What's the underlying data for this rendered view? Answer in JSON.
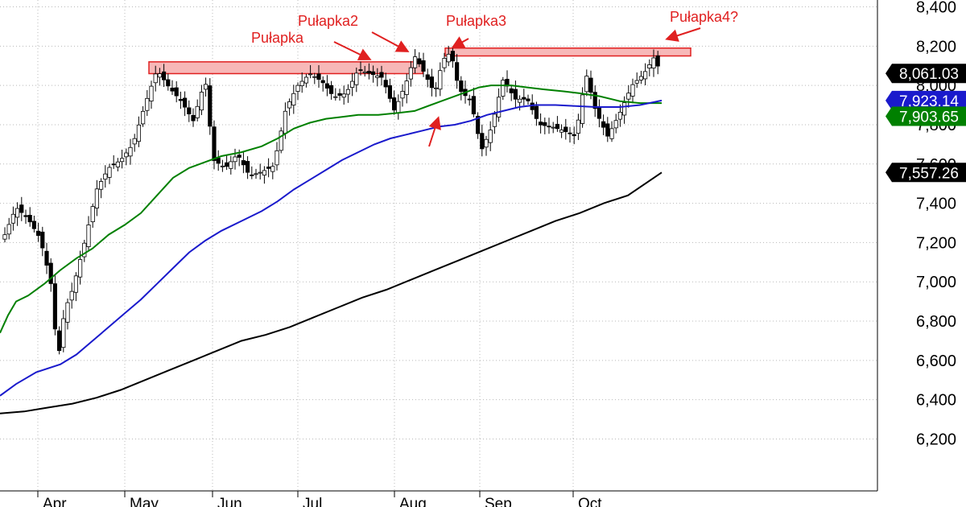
{
  "chart_data": {
    "type": "candlestick",
    "x_months": [
      "Apr",
      "May",
      "Jun",
      "Jul",
      "Aug",
      "Sep",
      "Oct"
    ],
    "y_ticks": [
      "6,200",
      "6,400",
      "6,600",
      "6,800",
      "7,000",
      "7,200",
      "7,400",
      "7,600",
      "7,800",
      "8,000",
      "8,200",
      "8,400"
    ],
    "y_tick_values": [
      6200,
      6400,
      6600,
      6800,
      7000,
      7200,
      7400,
      7600,
      7800,
      8000,
      8200,
      8400
    ],
    "ylim": [
      6160,
      8420
    ],
    "grid": true,
    "series": [
      {
        "key": "ma_short",
        "color": "#008000",
        "last_label": "7,903.65",
        "points": [
          [
            0,
            6740
          ],
          [
            10,
            6830
          ],
          [
            20,
            6900
          ],
          [
            35,
            6930
          ],
          [
            55,
            6990
          ],
          [
            75,
            7060
          ],
          [
            95,
            7120
          ],
          [
            115,
            7170
          ],
          [
            135,
            7240
          ],
          [
            155,
            7290
          ],
          [
            175,
            7350
          ],
          [
            195,
            7440
          ],
          [
            215,
            7530
          ],
          [
            235,
            7580
          ],
          [
            255,
            7610
          ],
          [
            275,
            7640
          ],
          [
            300,
            7660
          ],
          [
            325,
            7690
          ],
          [
            345,
            7730
          ],
          [
            365,
            7780
          ],
          [
            385,
            7810
          ],
          [
            405,
            7830
          ],
          [
            425,
            7840
          ],
          [
            445,
            7850
          ],
          [
            470,
            7850
          ],
          [
            495,
            7860
          ],
          [
            515,
            7870
          ],
          [
            535,
            7900
          ],
          [
            555,
            7930
          ],
          [
            575,
            7960
          ],
          [
            595,
            7990
          ],
          [
            610,
            8000
          ],
          [
            635,
            8000
          ],
          [
            655,
            7990
          ],
          [
            675,
            7980
          ],
          [
            700,
            7970
          ],
          [
            720,
            7960
          ],
          [
            745,
            7945
          ],
          [
            770,
            7920
          ],
          [
            795,
            7910
          ],
          [
            822,
            7910
          ]
        ]
      },
      {
        "key": "ma_mid",
        "color": "#1a1acc",
        "last_label": "7,923.14",
        "points": [
          [
            0,
            6420
          ],
          [
            20,
            6480
          ],
          [
            45,
            6540
          ],
          [
            75,
            6580
          ],
          [
            95,
            6630
          ],
          [
            115,
            6700
          ],
          [
            135,
            6770
          ],
          [
            155,
            6840
          ],
          [
            175,
            6910
          ],
          [
            195,
            6990
          ],
          [
            215,
            7070
          ],
          [
            235,
            7150
          ],
          [
            255,
            7210
          ],
          [
            275,
            7260
          ],
          [
            300,
            7310
          ],
          [
            325,
            7360
          ],
          [
            345,
            7410
          ],
          [
            365,
            7470
          ],
          [
            385,
            7520
          ],
          [
            405,
            7570
          ],
          [
            425,
            7620
          ],
          [
            445,
            7660
          ],
          [
            465,
            7700
          ],
          [
            485,
            7730
          ],
          [
            505,
            7750
          ],
          [
            525,
            7770
          ],
          [
            545,
            7790
          ],
          [
            565,
            7800
          ],
          [
            585,
            7820
          ],
          [
            605,
            7850
          ],
          [
            625,
            7870
          ],
          [
            645,
            7890
          ],
          [
            665,
            7900
          ],
          [
            690,
            7900
          ],
          [
            715,
            7895
          ],
          [
            740,
            7890
          ],
          [
            770,
            7890
          ],
          [
            795,
            7900
          ],
          [
            822,
            7923
          ]
        ]
      },
      {
        "key": "ma_long",
        "color": "#000000",
        "last_label": "7,557.26",
        "points": [
          [
            0,
            6330
          ],
          [
            30,
            6340
          ],
          [
            60,
            6360
          ],
          [
            90,
            6380
          ],
          [
            120,
            6410
          ],
          [
            150,
            6450
          ],
          [
            180,
            6500
          ],
          [
            210,
            6550
          ],
          [
            240,
            6600
          ],
          [
            270,
            6650
          ],
          [
            300,
            6700
          ],
          [
            330,
            6730
          ],
          [
            360,
            6770
          ],
          [
            390,
            6820
          ],
          [
            420,
            6870
          ],
          [
            450,
            6920
          ],
          [
            480,
            6960
          ],
          [
            510,
            7010
          ],
          [
            540,
            7060
          ],
          [
            570,
            7110
          ],
          [
            600,
            7160
          ],
          [
            630,
            7210
          ],
          [
            660,
            7260
          ],
          [
            690,
            7310
          ],
          [
            720,
            7350
          ],
          [
            750,
            7400
          ],
          [
            780,
            7440
          ],
          [
            822,
            7557
          ]
        ]
      }
    ],
    "last_price_label": "8,061.03",
    "resistance_zones": [
      {
        "from_x": 185,
        "to_x": 525,
        "low": 8060,
        "high": 8120
      },
      {
        "from_x": 553,
        "to_x": 858,
        "low": 8150,
        "high": 8190
      }
    ],
    "annotations": [
      {
        "text": "Pułapka"
      },
      {
        "text": "Pułapka2"
      },
      {
        "text": "Pułapka3"
      },
      {
        "text": "Pułapka4?"
      }
    ]
  }
}
